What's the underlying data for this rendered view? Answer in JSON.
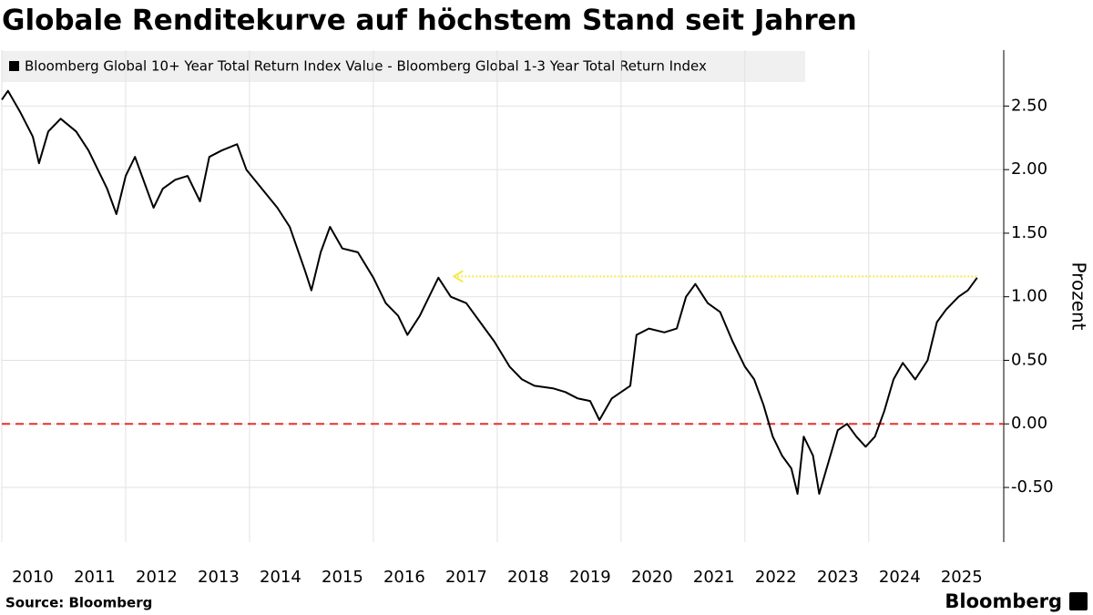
{
  "chart_data": {
    "type": "line",
    "title": "Globale Renditekurve auf höchstem Stand seit Jahren",
    "legend_label": "Bloomberg Global 10+ Year Total Return Index Value - Bloomberg Global 1-3 Year Total Return Index",
    "y_label": "Prozent",
    "source": "Source: Bloomberg",
    "brand": "Bloomberg",
    "x": [
      2010.0,
      2010.1,
      2010.3,
      2010.5,
      2010.6,
      2010.75,
      2010.95,
      2011.2,
      2011.4,
      2011.55,
      2011.7,
      2011.85,
      2012.0,
      2012.15,
      2012.3,
      2012.45,
      2012.6,
      2012.8,
      2013.0,
      2013.2,
      2013.35,
      2013.55,
      2013.8,
      2013.95,
      2014.2,
      2014.45,
      2014.65,
      2014.9,
      2015.0,
      2015.15,
      2015.3,
      2015.5,
      2015.75,
      2016.0,
      2016.2,
      2016.4,
      2016.55,
      2016.75,
      2016.95,
      2017.05,
      2017.25,
      2017.5,
      2017.8,
      2017.95,
      2018.2,
      2018.4,
      2018.6,
      2018.9,
      2019.1,
      2019.3,
      2019.5,
      2019.65,
      2019.85,
      2020.0,
      2020.15,
      2020.25,
      2020.45,
      2020.7,
      2020.9,
      2021.05,
      2021.2,
      2021.4,
      2021.6,
      2021.8,
      2022.0,
      2022.15,
      2022.3,
      2022.45,
      2022.6,
      2022.75,
      2022.85,
      2022.95,
      2023.1,
      2023.2,
      2023.35,
      2023.5,
      2023.65,
      2023.8,
      2023.95,
      2024.1,
      2024.25,
      2024.4,
      2024.55,
      2024.75,
      2024.95,
      2025.1,
      2025.25,
      2025.45,
      2025.6,
      2025.75
    ],
    "series": [
      {
        "name": "Bloomberg Global 10+ Year Total Return Index Value - Bloomberg Global 1-3 Year Total Return Index",
        "color": "#000000",
        "values": [
          2.55,
          2.62,
          2.45,
          2.26,
          2.05,
          2.3,
          2.4,
          2.3,
          2.15,
          2.0,
          1.85,
          1.65,
          1.95,
          2.1,
          1.9,
          1.7,
          1.85,
          1.92,
          1.95,
          1.75,
          2.1,
          2.15,
          2.2,
          2.0,
          1.85,
          1.7,
          1.55,
          1.2,
          1.05,
          1.35,
          1.55,
          1.38,
          1.35,
          1.15,
          0.95,
          0.85,
          0.7,
          0.85,
          1.05,
          1.15,
          1.0,
          0.95,
          0.75,
          0.65,
          0.45,
          0.35,
          0.3,
          0.28,
          0.25,
          0.2,
          0.18,
          0.03,
          0.2,
          0.25,
          0.3,
          0.7,
          0.75,
          0.72,
          0.75,
          1.0,
          1.1,
          0.95,
          0.88,
          0.65,
          0.45,
          0.35,
          0.15,
          -0.1,
          -0.25,
          -0.35,
          -0.55,
          -0.1,
          -0.25,
          -0.55,
          -0.3,
          -0.05,
          0.0,
          -0.1,
          -0.18,
          -0.1,
          0.1,
          0.35,
          0.48,
          0.35,
          0.5,
          0.8,
          0.9,
          1.0,
          1.05,
          1.15
        ]
      }
    ],
    "xlim": [
      2010.0,
      2026.18
    ],
    "xticks": [
      {
        "value": 2010.5,
        "label": "2010"
      },
      {
        "value": 2011.5,
        "label": "2011"
      },
      {
        "value": 2012.5,
        "label": "2012"
      },
      {
        "value": 2013.5,
        "label": "2013"
      },
      {
        "value": 2014.5,
        "label": "2014"
      },
      {
        "value": 2015.5,
        "label": "2015"
      },
      {
        "value": 2016.5,
        "label": "2016"
      },
      {
        "value": 2017.5,
        "label": "2017"
      },
      {
        "value": 2018.5,
        "label": "2018"
      },
      {
        "value": 2019.5,
        "label": "2019"
      },
      {
        "value": 2020.5,
        "label": "2020"
      },
      {
        "value": 2021.5,
        "label": "2021"
      },
      {
        "value": 2022.5,
        "label": "2022"
      },
      {
        "value": 2023.5,
        "label": "2023"
      },
      {
        "value": 2024.5,
        "label": "2024"
      },
      {
        "value": 2025.5,
        "label": "2025"
      }
    ],
    "x_grid": [
      2010,
      2012,
      2014,
      2016,
      2018,
      2020,
      2022,
      2024
    ],
    "ylim": [
      -0.93,
      2.94
    ],
    "yticks": [
      {
        "value": -0.5,
        "label": "-0.50"
      },
      {
        "value": 0,
        "label": "0.00"
      },
      {
        "value": 0.5,
        "label": "0.50"
      },
      {
        "value": 1,
        "label": "1.00"
      },
      {
        "value": 1.5,
        "label": "1.50"
      },
      {
        "value": 2,
        "label": "2.00"
      },
      {
        "value": 2.5,
        "label": "2.50"
      }
    ],
    "grid": true,
    "zero_line": {
      "value": 0,
      "color": "#e8302b"
    },
    "reference_arrow": {
      "value": 1.16,
      "x": [
        2017.3,
        2025.75
      ],
      "color": "#f5e94a"
    }
  }
}
